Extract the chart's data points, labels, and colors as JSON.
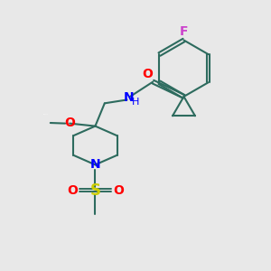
{
  "background_color": "#e8e8e8",
  "bond_color": "#2d6b5e",
  "atom_colors": {
    "F": "#cc44cc",
    "O": "#ff0000",
    "N": "#0000ff",
    "S": "#cccc00",
    "C": "#2d6b5e"
  },
  "figsize": [
    3.0,
    3.0
  ],
  "dpi": 100
}
